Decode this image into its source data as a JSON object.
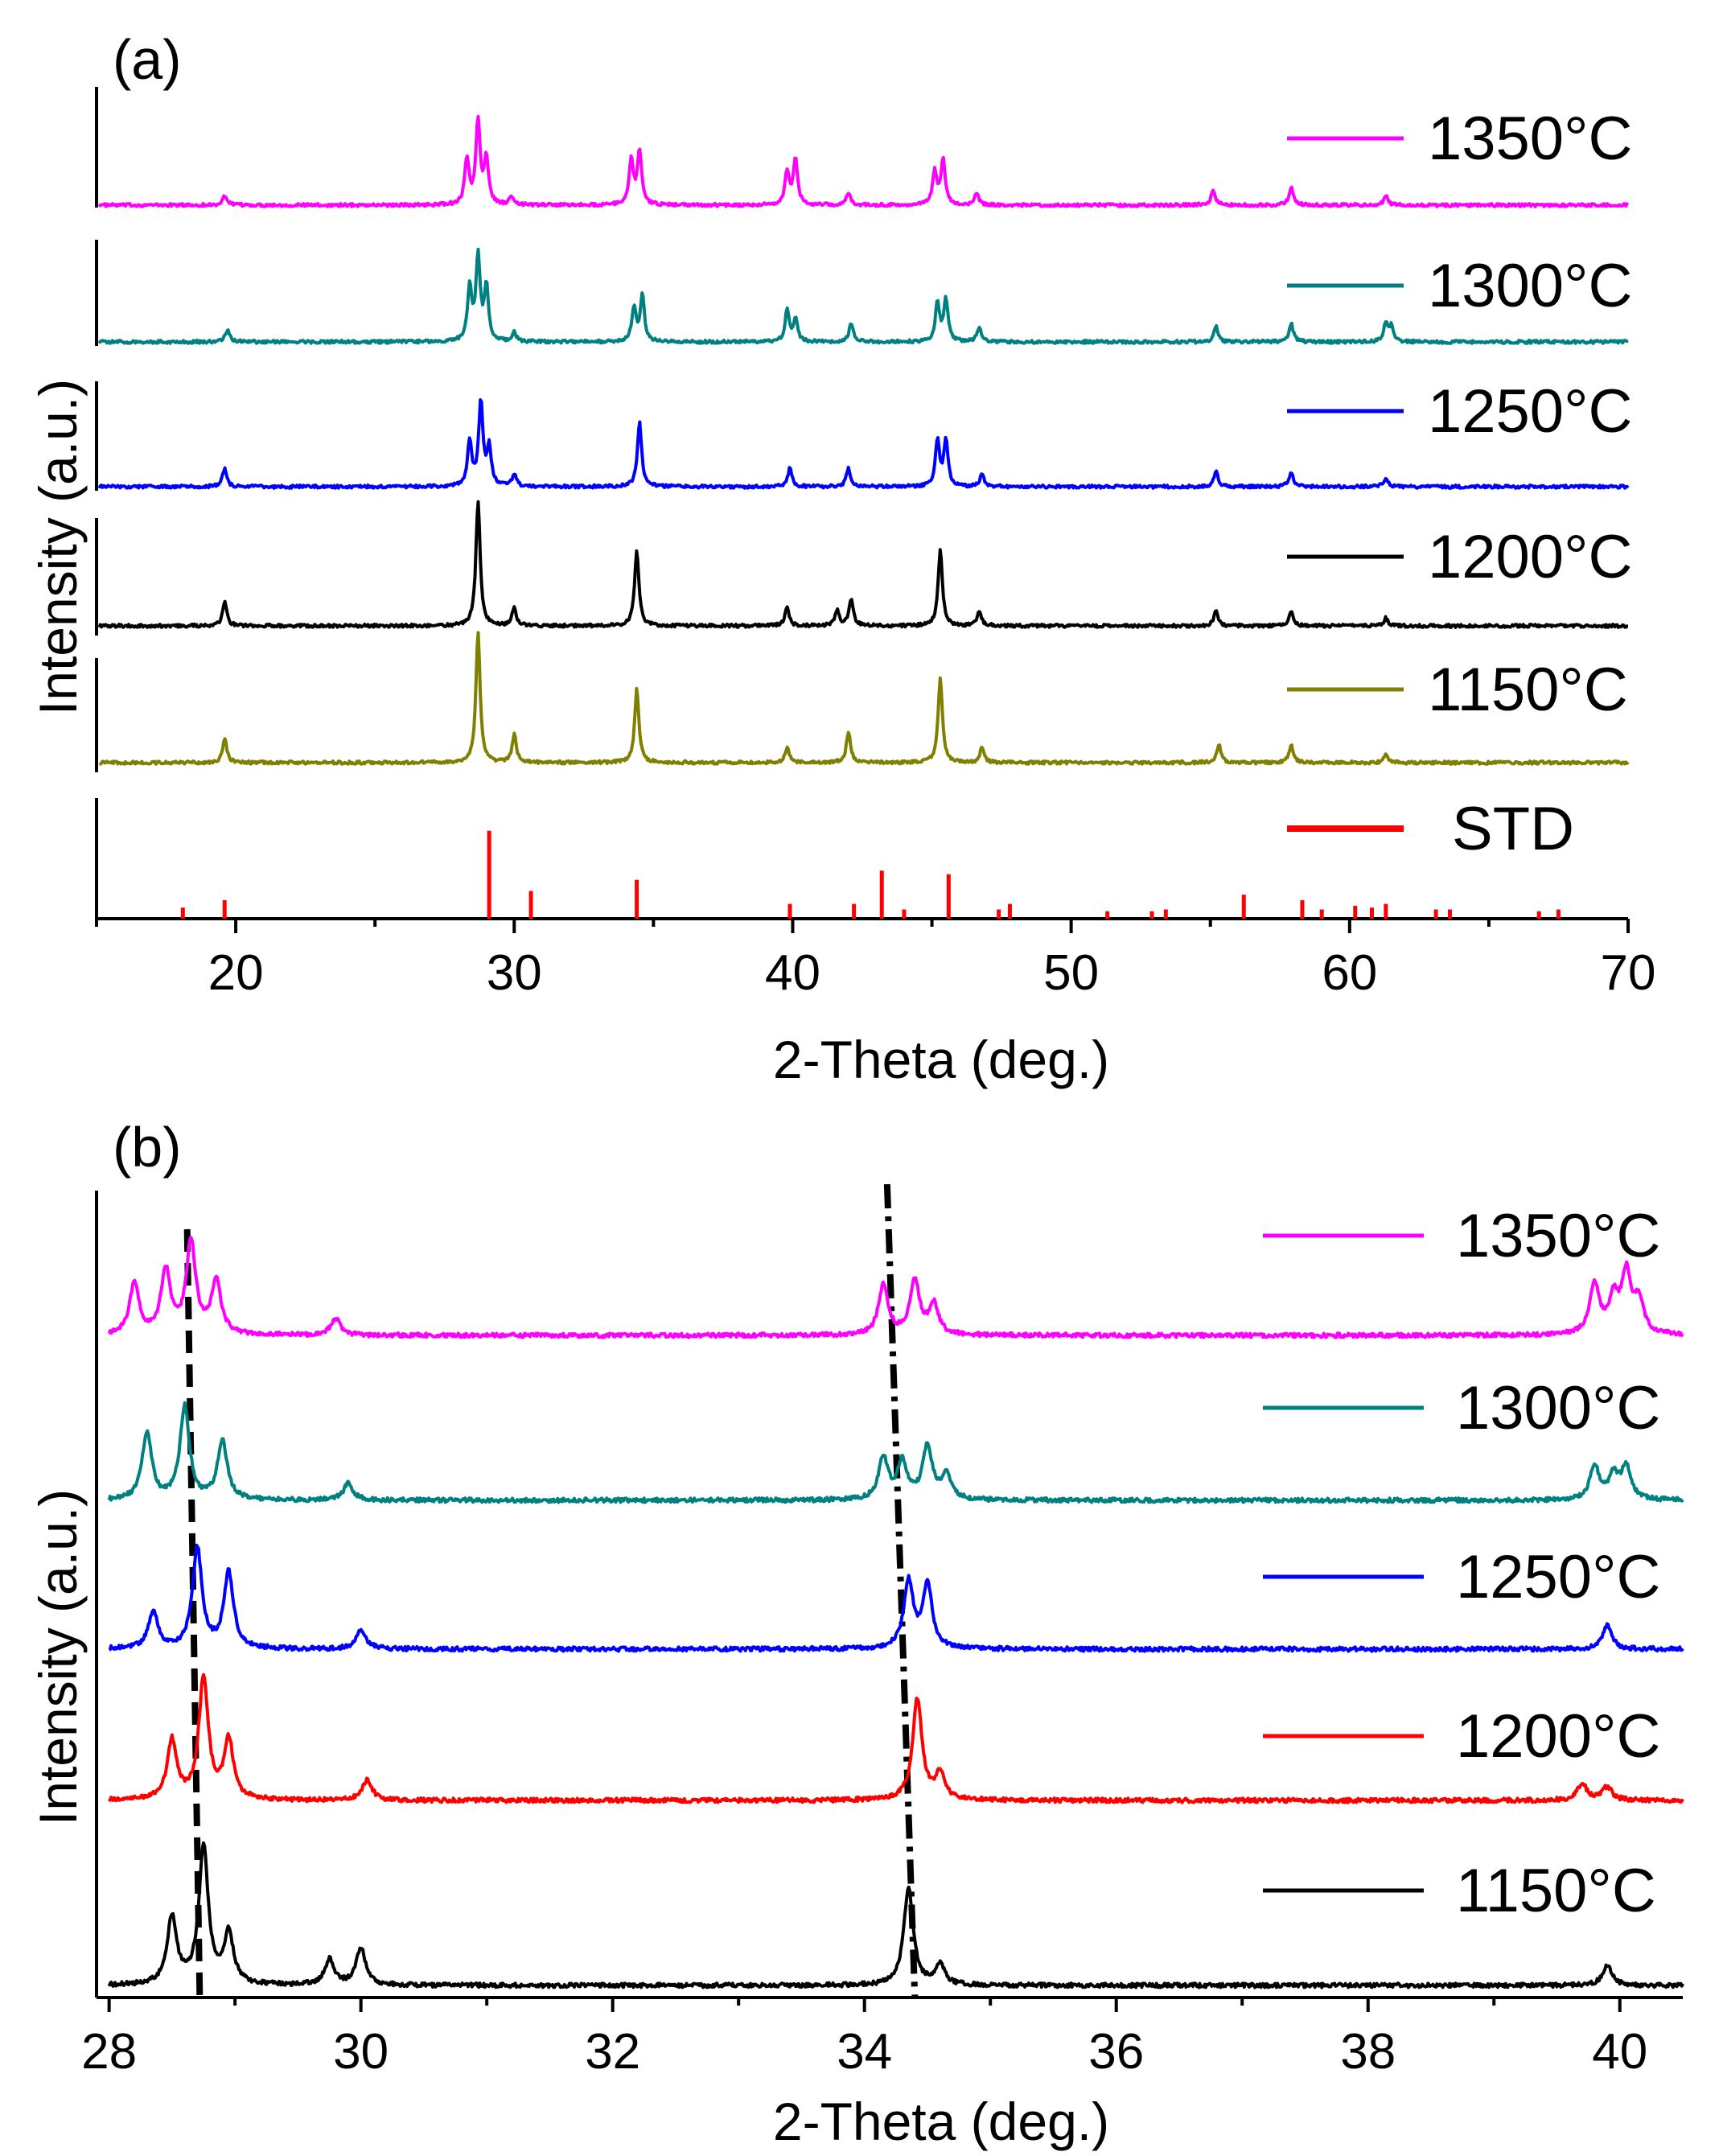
{
  "chart_data": [
    {
      "panel": "(a)",
      "type": "line",
      "xlabel": "2-Theta (deg.)",
      "ylabel": "Intensity (a.u.)",
      "xlim": [
        15,
        70
      ],
      "xticks": [
        20,
        30,
        40,
        50,
        60,
        70
      ],
      "series": [
        {
          "name": "1350",
          "color": "#ff00ff",
          "peaks": [
            [
              19.6,
              0.06
            ],
            [
              28.3,
              0.3
            ],
            [
              28.7,
              0.55
            ],
            [
              29.0,
              0.3
            ],
            [
              29.9,
              0.05
            ],
            [
              34.2,
              0.3
            ],
            [
              34.5,
              0.35
            ],
            [
              39.8,
              0.22
            ],
            [
              40.1,
              0.3
            ],
            [
              42.0,
              0.08
            ],
            [
              45.1,
              0.22
            ],
            [
              45.4,
              0.3
            ],
            [
              46.6,
              0.08
            ],
            [
              55.1,
              0.1
            ],
            [
              57.9,
              0.12
            ],
            [
              61.3,
              0.06
            ]
          ]
        },
        {
          "name": "1300",
          "color": "#008080",
          "peaks": [
            [
              19.7,
              0.08
            ],
            [
              28.4,
              0.35
            ],
            [
              28.7,
              0.55
            ],
            [
              29.0,
              0.35
            ],
            [
              30.0,
              0.06
            ],
            [
              34.3,
              0.22
            ],
            [
              34.6,
              0.3
            ],
            [
              39.8,
              0.2
            ],
            [
              40.1,
              0.15
            ],
            [
              42.1,
              0.12
            ],
            [
              45.2,
              0.25
            ],
            [
              45.5,
              0.28
            ],
            [
              46.7,
              0.1
            ],
            [
              55.2,
              0.1
            ],
            [
              57.9,
              0.12
            ],
            [
              61.3,
              0.12
            ],
            [
              61.5,
              0.1
            ]
          ]
        },
        {
          "name": "1250",
          "color": "#0000ff",
          "peaks": [
            [
              19.6,
              0.12
            ],
            [
              28.4,
              0.3
            ],
            [
              28.8,
              0.55
            ],
            [
              29.1,
              0.25
            ],
            [
              30.0,
              0.08
            ],
            [
              34.5,
              0.42
            ],
            [
              39.9,
              0.12
            ],
            [
              42.0,
              0.12
            ],
            [
              45.2,
              0.3
            ],
            [
              45.5,
              0.3
            ],
            [
              46.8,
              0.08
            ],
            [
              55.2,
              0.1
            ],
            [
              57.9,
              0.1
            ],
            [
              61.3,
              0.06
            ]
          ]
        },
        {
          "name": "1200",
          "color": "#000000",
          "peaks": [
            [
              19.6,
              0.16
            ],
            [
              28.7,
              0.82
            ],
            [
              30.0,
              0.12
            ],
            [
              34.4,
              0.5
            ],
            [
              39.8,
              0.12
            ],
            [
              41.6,
              0.1
            ],
            [
              42.1,
              0.18
            ],
            [
              45.3,
              0.5
            ],
            [
              46.7,
              0.1
            ],
            [
              55.2,
              0.1
            ],
            [
              57.9,
              0.1
            ],
            [
              61.3,
              0.05
            ]
          ]
        },
        {
          "name": "1150",
          "color": "#808000",
          "peaks": [
            [
              19.6,
              0.16
            ],
            [
              28.7,
              0.85
            ],
            [
              30.0,
              0.18
            ],
            [
              34.4,
              0.48
            ],
            [
              39.8,
              0.1
            ],
            [
              42.0,
              0.2
            ],
            [
              45.3,
              0.55
            ],
            [
              46.8,
              0.1
            ],
            [
              55.3,
              0.12
            ],
            [
              57.9,
              0.12
            ],
            [
              61.3,
              0.05
            ]
          ]
        }
      ],
      "std": {
        "name": "STD",
        "color": "#ff0000",
        "positions": [
          18.1,
          19.6,
          29.1,
          30.6,
          34.4,
          39.9,
          42.2,
          43.2,
          44.0,
          45.6,
          47.4,
          47.8,
          51.3,
          52.9,
          53.4,
          56.2,
          58.3,
          59.0,
          60.2,
          60.8,
          61.3,
          63.1,
          63.6,
          66.8,
          67.5
        ],
        "heights": [
          0.12,
          0.2,
          0.95,
          0.3,
          0.42,
          0.16,
          0.16,
          0.52,
          0.1,
          0.48,
          0.1,
          0.16,
          0.08,
          0.08,
          0.1,
          0.26,
          0.2,
          0.1,
          0.14,
          0.12,
          0.16,
          0.1,
          0.1,
          0.08,
          0.1
        ]
      }
    },
    {
      "panel": "(b)",
      "type": "line",
      "xlabel": "2-Theta (deg.)",
      "ylabel": "Intensity (a.u.)",
      "xlim": [
        27.9,
        40.5
      ],
      "xticks": [
        28,
        30,
        32,
        34,
        36,
        38,
        40
      ],
      "series": [
        {
          "name": "1350",
          "color": "#ff00ff",
          "peaks": [
            [
              28.2,
              0.3
            ],
            [
              28.45,
              0.38
            ],
            [
              28.65,
              0.55
            ],
            [
              28.85,
              0.32
            ],
            [
              29.8,
              0.1
            ],
            [
              34.15,
              0.3
            ],
            [
              34.4,
              0.32
            ],
            [
              34.55,
              0.18
            ],
            [
              39.8,
              0.3
            ],
            [
              39.95,
              0.2
            ],
            [
              40.05,
              0.35
            ],
            [
              40.15,
              0.2
            ]
          ]
        },
        {
          "name": "1300",
          "color": "#008080",
          "peaks": [
            [
              28.3,
              0.4
            ],
            [
              28.6,
              0.55
            ],
            [
              28.9,
              0.35
            ],
            [
              29.9,
              0.1
            ],
            [
              34.15,
              0.25
            ],
            [
              34.3,
              0.22
            ],
            [
              34.5,
              0.32
            ],
            [
              34.65,
              0.15
            ],
            [
              39.8,
              0.2
            ],
            [
              39.95,
              0.14
            ],
            [
              40.05,
              0.2
            ]
          ]
        },
        {
          "name": "1250",
          "color": "#0000ff",
          "peaks": [
            [
              28.35,
              0.22
            ],
            [
              28.7,
              0.6
            ],
            [
              28.95,
              0.45
            ],
            [
              30.0,
              0.12
            ],
            [
              34.35,
              0.4
            ],
            [
              34.5,
              0.38
            ],
            [
              39.9,
              0.14
            ]
          ]
        },
        {
          "name": "1200",
          "color": "#ff0000",
          "peaks": [
            [
              28.5,
              0.35
            ],
            [
              28.75,
              0.72
            ],
            [
              28.95,
              0.35
            ],
            [
              30.05,
              0.12
            ],
            [
              34.42,
              0.6
            ],
            [
              34.6,
              0.15
            ],
            [
              39.7,
              0.1
            ],
            [
              39.9,
              0.08
            ]
          ]
        },
        {
          "name": "1150",
          "color": "#000000",
          "peaks": [
            [
              28.5,
              0.4
            ],
            [
              28.75,
              0.82
            ],
            [
              28.95,
              0.3
            ],
            [
              29.75,
              0.15
            ],
            [
              30.0,
              0.22
            ],
            [
              34.35,
              0.58
            ],
            [
              34.6,
              0.12
            ],
            [
              39.9,
              0.12
            ]
          ]
        }
      ]
    }
  ],
  "legend_a": [
    "1350°C",
    "1300°C",
    "1250°C",
    "1200°C",
    "1150°C",
    "STD"
  ],
  "legend_b": [
    "1350°C",
    "1300°C",
    "1250°C",
    "1200°C",
    "1150°C"
  ],
  "panel_a_label": "(a)",
  "panel_b_label": "(b)",
  "xlabel_a": "2-Theta (deg.)",
  "xlabel_b": "2-Theta (deg.)",
  "ylabel_a": "Intensity (a.u.)",
  "ylabel_b": "Intensity (a.u.)"
}
